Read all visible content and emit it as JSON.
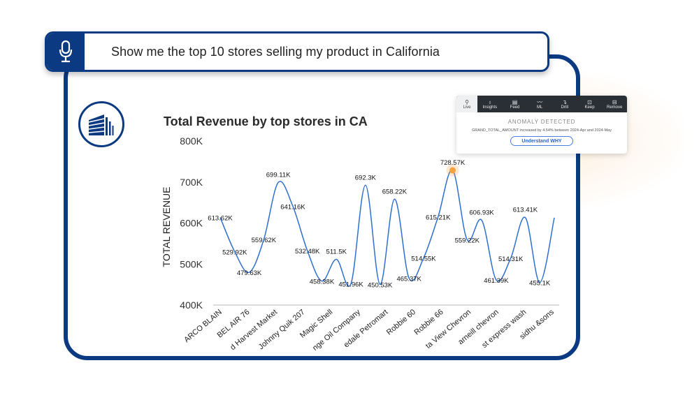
{
  "query": {
    "text": "Show me the top 10 stores selling my product in California",
    "mic_icon": "microphone-icon"
  },
  "logo_icon": "building-icon",
  "popup": {
    "tabs": [
      {
        "label": "Live",
        "icon": "⚲"
      },
      {
        "label": "Insights",
        "icon": "♁"
      },
      {
        "label": "Feed",
        "icon": "▤"
      },
      {
        "label": "ML",
        "icon": "〰"
      },
      {
        "label": "Drill",
        "icon": "↴"
      },
      {
        "label": "Keep",
        "icon": "⊡"
      },
      {
        "label": "Remove",
        "icon": "⊟"
      }
    ],
    "title": "ANOMALY DETECTED",
    "description": "GRAND_TOTAL_AMOUNT increased by 4.54% between 2024-Apr and 2024-May",
    "button": "Understand WHY"
  },
  "colors": {
    "brand": "#0b3a82",
    "line": "#2f6fd0",
    "highlight": "#f4a340"
  },
  "chart_data": {
    "type": "line",
    "title": "Total Revenue by top stores in CA",
    "xlabel": "",
    "ylabel": "TOTAL REVENUE",
    "ylim": [
      400000,
      800000
    ],
    "yticks": [
      "400K",
      "500K",
      "600K",
      "700K",
      "800K"
    ],
    "ytick_values": [
      400000,
      500000,
      600000,
      700000,
      800000
    ],
    "grid": false,
    "categories": [
      "ARCO BLAIN",
      "BEL AIR 76",
      "d Harvest Market",
      "Johnny Quik 207",
      "Magic Shell",
      "nge Oil Company",
      "edale Petromart",
      "Robbie 60",
      "Robbie 66",
      "ta View Chevron",
      "arneill chevron",
      "st express wash",
      "sidhu &sons"
    ],
    "series": [
      {
        "name": "Total Revenue",
        "values": [
          613620,
          529920,
          479630,
          559620,
          699110,
          641160,
          532480,
          458380,
          511500,
          451960,
          692300,
          450530,
          658220,
          465370,
          514550,
          615210,
          728570,
          559220,
          606930,
          461390,
          514310,
          613410,
          455100,
          613000
        ],
        "labels": [
          "613.62K",
          "529.92K",
          "479.63K",
          "559.62K",
          "699.11K",
          "641.16K",
          "532.48K",
          "458.38K",
          "511.5K",
          "451.96K",
          "692.3K",
          "450.53K",
          "658.22K",
          "465.37K",
          "514.55K",
          "615.21K",
          "728.57K",
          "559.22K",
          "606.93K",
          "461.39K",
          "514.31K",
          "613.41K",
          "455.1K",
          ""
        ]
      }
    ],
    "highlighted_point": "728.57K"
  }
}
